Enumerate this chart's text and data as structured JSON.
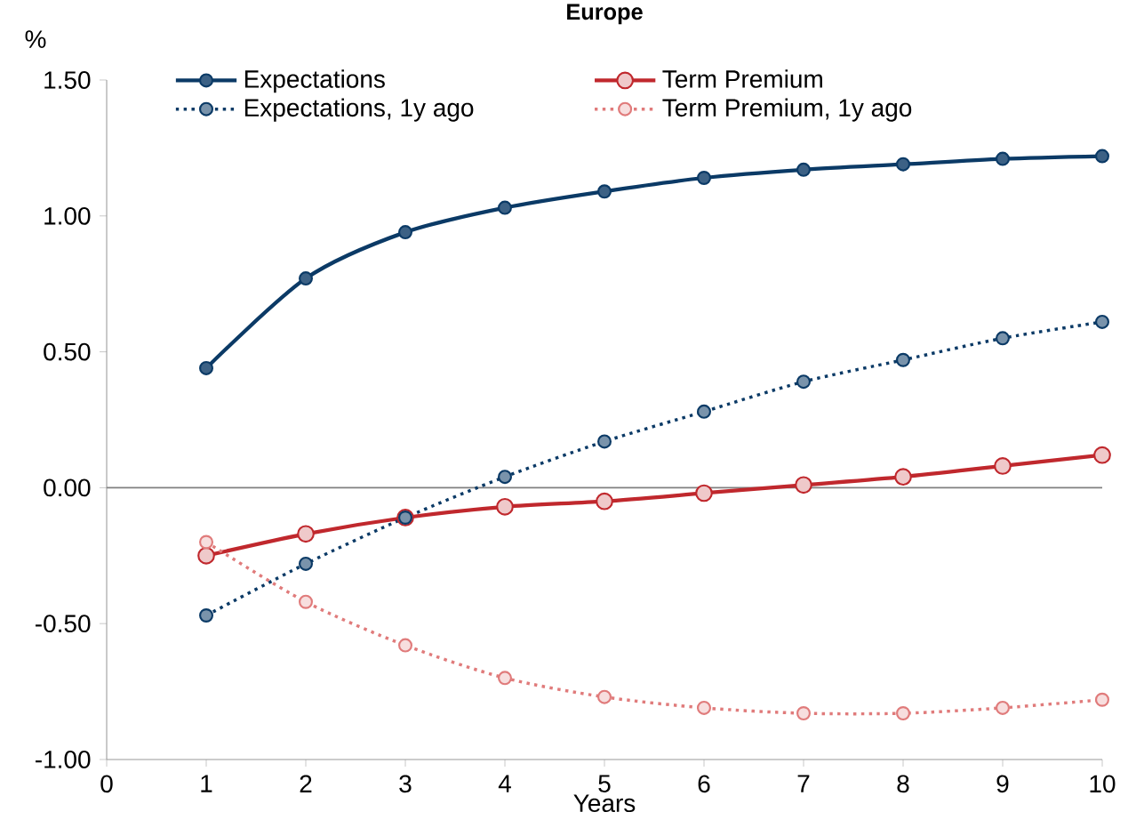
{
  "chart_data": {
    "type": "line",
    "title": "Europe",
    "xlabel": "Years",
    "ylabel": "%",
    "x": [
      1,
      2,
      3,
      4,
      5,
      6,
      7,
      8,
      9,
      10
    ],
    "series": [
      {
        "name": "Expectations",
        "color": "#0b3a66",
        "line_style": "solid",
        "values": [
          0.44,
          0.77,
          0.94,
          1.03,
          1.09,
          1.14,
          1.17,
          1.19,
          1.21,
          1.22
        ]
      },
      {
        "name": "Term Premium",
        "color": "#c0282d",
        "line_style": "solid",
        "values": [
          -0.25,
          -0.17,
          -0.11,
          -0.07,
          -0.05,
          -0.02,
          0.01,
          0.04,
          0.08,
          0.12
        ]
      },
      {
        "name": "Expectations, 1y ago",
        "color": "#0b3a66",
        "line_style": "dotted",
        "values": [
          -0.47,
          -0.28,
          -0.11,
          0.04,
          0.17,
          0.28,
          0.39,
          0.47,
          0.55,
          0.61
        ]
      },
      {
        "name": "Term Premium, 1y ago",
        "color": "#e07b7b",
        "line_style": "dotted",
        "values": [
          -0.2,
          -0.42,
          -0.58,
          -0.7,
          -0.77,
          -0.81,
          -0.83,
          -0.83,
          -0.81,
          -0.78
        ]
      }
    ],
    "xlim": [
      0,
      10
    ],
    "xticks": [
      0,
      1,
      2,
      3,
      4,
      5,
      6,
      7,
      8,
      9,
      10
    ],
    "ylim": [
      -1,
      1.5
    ],
    "yticks": [
      {
        "value": -1,
        "label": "-1.00"
      },
      {
        "value": -0.5,
        "label": "-0.50"
      },
      {
        "value": 0,
        "label": "0.00"
      },
      {
        "value": 0.5,
        "label": "0.50"
      },
      {
        "value": 1,
        "label": "1.00"
      },
      {
        "value": 1.5,
        "label": "1.50"
      }
    ],
    "ref_lines": [
      {
        "axis": "y",
        "value": 0,
        "color": "#808080"
      }
    ],
    "grid": false,
    "legend": "top",
    "marker": "circle"
  }
}
